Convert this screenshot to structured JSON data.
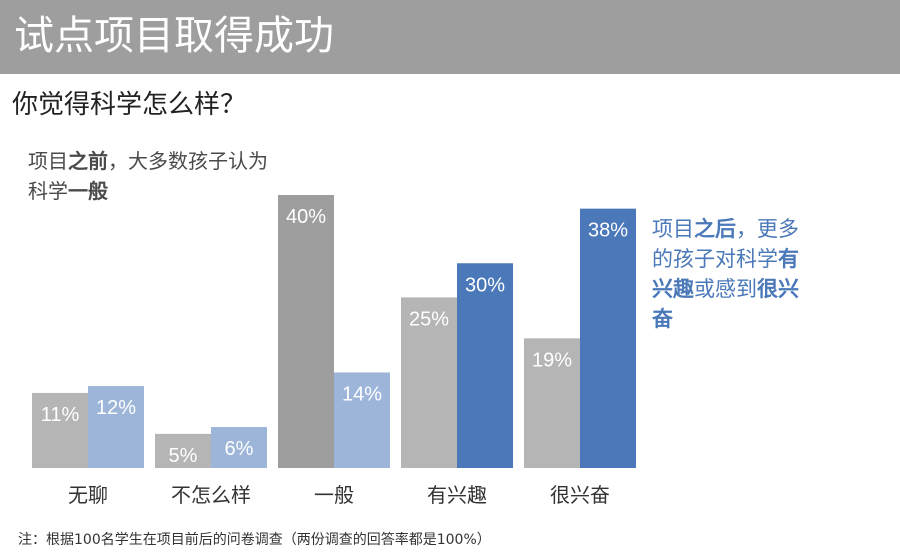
{
  "header": {
    "title": "试点项目取得成功",
    "subtitle": "你觉得科学怎么样？"
  },
  "annotations": {
    "before": {
      "part1": "项目",
      "part2": "之前",
      "part3": "，大多数孩子认为科学",
      "part4": "一般"
    },
    "after": {
      "part1": "项目",
      "part2": "之后",
      "part3": "，更多的孩子对科学",
      "part4": "有兴趣",
      "part5": "或感到",
      "part6": "很兴奋"
    }
  },
  "footnote": "注：根据100名学生在项目前后的问卷调查（两份调查的回答率都是100%）",
  "colors": {
    "before": "#b5b5b5",
    "after_light": "#9db5d9",
    "after_strong": "#4a78b8",
    "before_strong": "#9e9e9e"
  },
  "chart_data": {
    "type": "bar",
    "categories": [
      "无聊",
      "不怎么样",
      "一般",
      "有兴趣",
      "很兴奋"
    ],
    "series": [
      {
        "values": [
          11,
          5,
          40,
          25,
          19
        ]
      },
      {
        "values": [
          12,
          6,
          14,
          30,
          38
        ]
      }
    ],
    "data_labels": [
      [
        "11%",
        "5%",
        "40%",
        "25%",
        "19%"
      ],
      [
        "12%",
        "6%",
        "14%",
        "30%",
        "38%"
      ]
    ],
    "ylim": [
      0,
      40
    ]
  }
}
